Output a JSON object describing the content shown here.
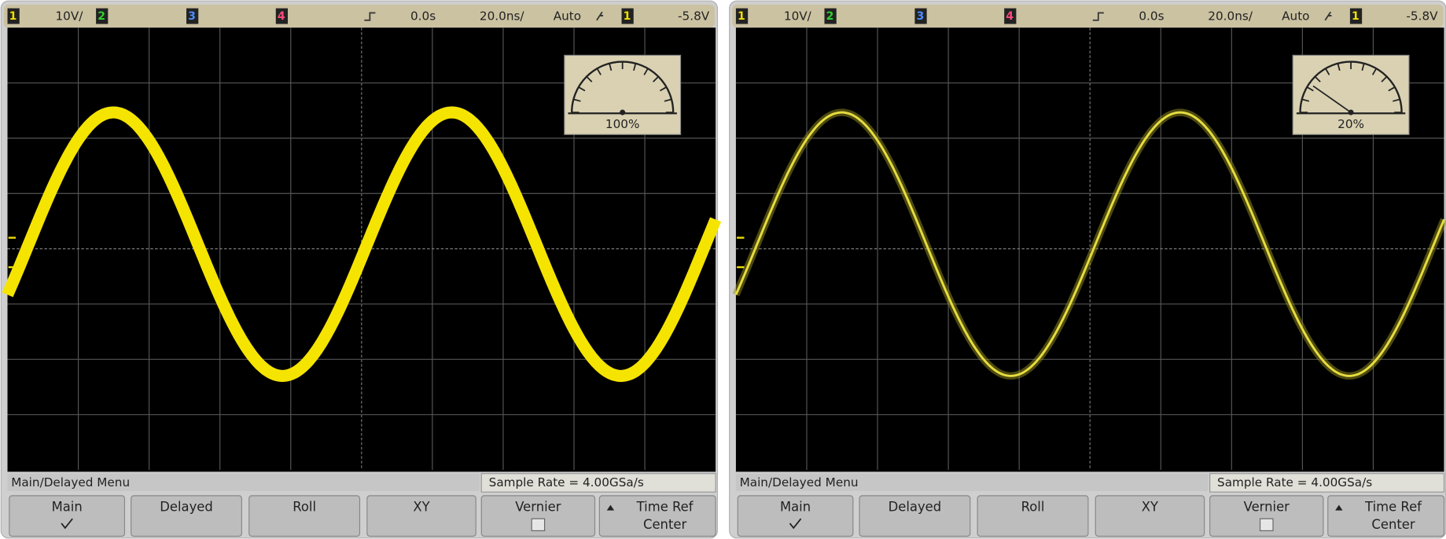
{
  "screens": [
    {
      "status": [
        "1",
        "10V/",
        "2",
        "3",
        "4",
        "0.0s",
        "20.0ns/",
        "Auto",
        "1",
        "-5.8V"
      ],
      "intensity": "100%",
      "menu_title": "Main/Delayed Menu",
      "sample_rate": "Sample Rate = 4.00GSa/s",
      "buttons": [
        {
          "label": "Main"
        },
        {
          "label": "Delayed"
        },
        {
          "label": "Roll"
        },
        {
          "label": "XY"
        },
        {
          "label": "Vernier"
        },
        {
          "label": "Time Ref",
          "sublabel": "Center"
        }
      ]
    },
    {
      "status": [
        "1",
        "10V/",
        "2",
        "3",
        "4",
        "0.0s",
        "20.0ns/",
        "Auto",
        "1",
        "-5.8V"
      ],
      "intensity": "20%",
      "menu_title": "Main/Delayed Menu",
      "sample_rate": "Sample Rate = 4.00GSa/s",
      "buttons": [
        {
          "label": "Main"
        },
        {
          "label": "Delayed"
        },
        {
          "label": "Roll"
        },
        {
          "label": "XY"
        },
        {
          "label": "Vernier"
        },
        {
          "label": "Time Ref",
          "sublabel": "Center"
        }
      ]
    }
  ]
}
